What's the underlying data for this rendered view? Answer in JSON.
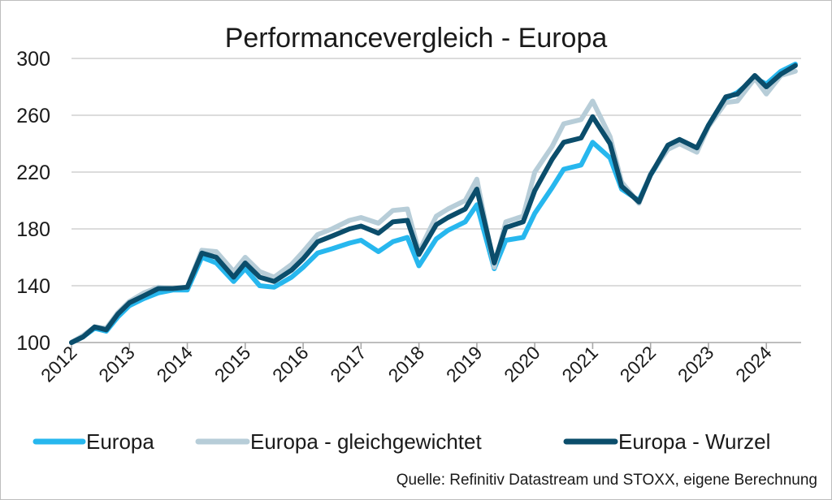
{
  "chart_data": {
    "type": "line",
    "title": "Performancevergleich - Europa",
    "xlabel": "",
    "ylabel": "",
    "ylim": [
      100,
      300
    ],
    "yticks": [
      100,
      140,
      180,
      220,
      260,
      300
    ],
    "xlim": [
      2012,
      2024.6
    ],
    "x_tick_labels": [
      "2012",
      "2013",
      "2014",
      "2015",
      "2016",
      "2017",
      "2018",
      "2019",
      "2020",
      "2021",
      "2022",
      "2023",
      "2024"
    ],
    "grid": true,
    "legend_position": "bottom",
    "colors": {
      "europa": "#27b7ee",
      "gleich": "#b7cdd8",
      "wurzel": "#0b4d6b"
    },
    "x": [
      2012.0,
      2012.2,
      2012.4,
      2012.6,
      2012.8,
      2013.0,
      2013.25,
      2013.5,
      2013.75,
      2014.0,
      2014.25,
      2014.5,
      2014.8,
      2015.0,
      2015.25,
      2015.5,
      2015.8,
      2016.0,
      2016.25,
      2016.5,
      2016.8,
      2017.0,
      2017.3,
      2017.55,
      2017.8,
      2018.0,
      2018.3,
      2018.5,
      2018.8,
      2019.0,
      2019.3,
      2019.5,
      2019.8,
      2020.0,
      2020.3,
      2020.5,
      2020.8,
      2021.0,
      2021.3,
      2021.5,
      2021.8,
      2022.0,
      2022.3,
      2022.5,
      2022.8,
      2023.0,
      2023.3,
      2023.5,
      2023.8,
      2024.0,
      2024.25,
      2024.5
    ],
    "series": [
      {
        "name": "Europa",
        "key": "europa",
        "values": [
          100,
          104,
          110,
          108,
          118,
          126,
          131,
          135,
          137,
          137,
          160,
          156,
          143,
          152,
          140,
          139,
          146,
          153,
          163,
          166,
          170,
          172,
          164,
          171,
          174,
          154,
          173,
          179,
          185,
          197,
          152,
          172,
          174,
          191,
          209,
          222,
          225,
          241,
          230,
          208,
          200,
          218,
          237,
          241,
          235,
          253,
          272,
          276,
          286,
          282,
          291,
          296
        ]
      },
      {
        "name": "Europa - gleichgewichtet",
        "key": "gleich",
        "values": [
          100,
          105,
          111,
          110,
          121,
          129,
          135,
          139,
          138,
          139,
          165,
          164,
          150,
          160,
          150,
          146,
          155,
          164,
          176,
          180,
          186,
          188,
          184,
          193,
          194,
          164,
          189,
          194,
          200,
          215,
          153,
          185,
          189,
          220,
          238,
          254,
          257,
          270,
          245,
          213,
          198,
          219,
          236,
          240,
          234,
          252,
          269,
          270,
          286,
          275,
          288,
          291
        ]
      },
      {
        "name": "Europa - Wurzel",
        "key": "wurzel",
        "values": [
          100,
          104,
          111,
          109,
          120,
          128,
          133,
          138,
          138,
          139,
          163,
          160,
          146,
          156,
          146,
          143,
          151,
          159,
          171,
          175,
          180,
          182,
          177,
          185,
          186,
          162,
          183,
          188,
          194,
          208,
          156,
          181,
          185,
          207,
          229,
          241,
          244,
          259,
          240,
          210,
          199,
          218,
          239,
          243,
          237,
          253,
          273,
          275,
          288,
          280,
          289,
          295
        ]
      }
    ],
    "source": "Quelle: Refinitiv Datastream und STOXX, eigene Berechnung"
  }
}
